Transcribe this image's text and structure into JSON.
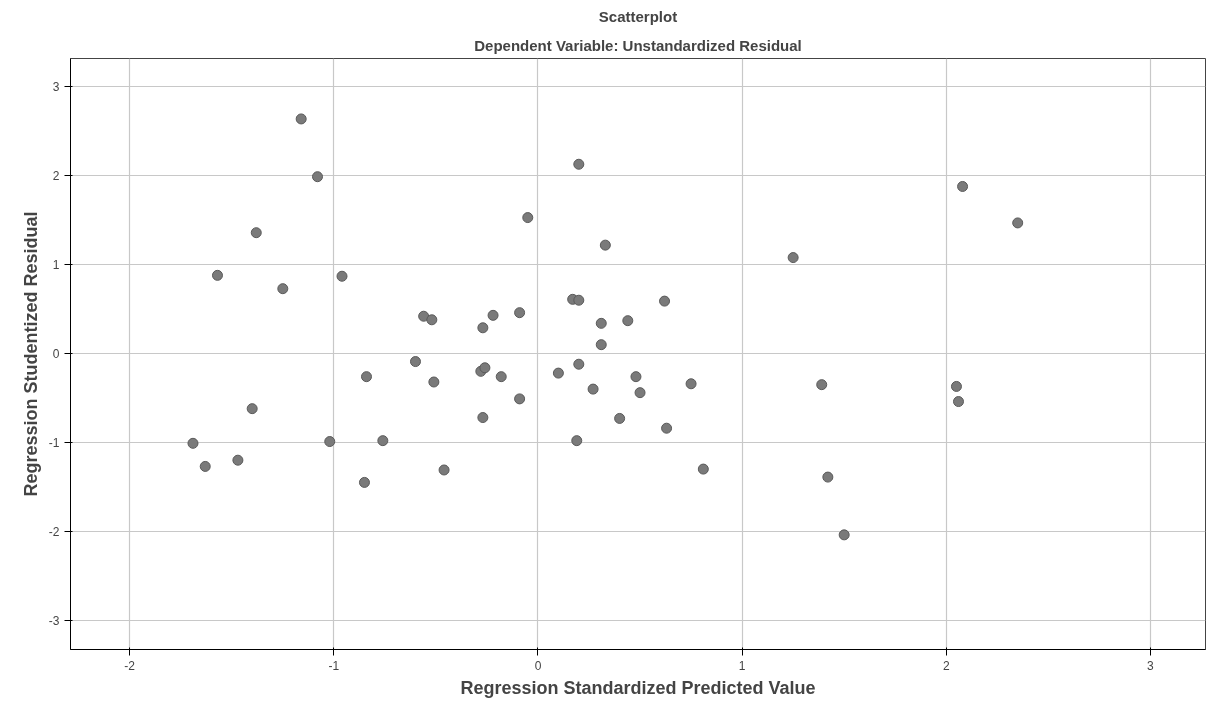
{
  "chart_data": {
    "type": "scatter",
    "title": "Scatterplot",
    "subtitle": "Dependent Variable: Unstandardized Residual",
    "xlabel": "Regression Standardized Predicted Value",
    "ylabel": "Regression Studentized Residual",
    "xlim": [
      -2.29,
      3.27
    ],
    "ylim": [
      -3.33,
      3.32
    ],
    "xticks": [
      -2,
      -1,
      0,
      1,
      2,
      3
    ],
    "yticks": [
      -3,
      -2,
      -1,
      0,
      1,
      2,
      3
    ],
    "grid": true,
    "marker": "circle",
    "series": [
      {
        "color": "#7a7a7a",
        "x": [
          -1.16,
          -1.08,
          -1.38,
          -1.57,
          -1.25,
          -0.96,
          -1.69,
          -1.63,
          -1.47,
          -1.4,
          -1.02,
          -0.84,
          -0.85,
          -0.76,
          -0.6,
          -0.56,
          -0.52,
          -0.51,
          -0.46,
          -0.28,
          -0.26,
          -0.27,
          -0.27,
          -0.22,
          -0.18,
          -0.09,
          -0.09,
          -0.05,
          0.1,
          0.17,
          0.2,
          0.2,
          0.2,
          0.19,
          0.27,
          0.31,
          0.31,
          0.33,
          0.44,
          0.4,
          0.48,
          0.5,
          0.62,
          0.63,
          0.75,
          0.81,
          1.25,
          1.39,
          1.42,
          1.5,
          2.05,
          2.06,
          2.08,
          2.35
        ],
        "values": [
          2.64,
          1.99,
          1.36,
          0.88,
          0.73,
          0.87,
          -1.01,
          -1.27,
          -1.2,
          -0.62,
          -0.99,
          -0.26,
          -1.45,
          -0.98,
          -0.09,
          0.42,
          0.38,
          -0.32,
          -1.31,
          -0.2,
          -0.16,
          0.29,
          -0.72,
          0.43,
          -0.26,
          0.46,
          -0.51,
          1.53,
          -0.22,
          0.61,
          0.6,
          2.13,
          -0.12,
          -0.98,
          -0.4,
          0.34,
          0.1,
          1.22,
          0.37,
          -0.73,
          -0.26,
          -0.44,
          0.59,
          -0.84,
          -0.34,
          -1.3,
          1.08,
          -0.35,
          -1.39,
          -2.04,
          -0.37,
          -0.54,
          1.88,
          1.47
        ]
      }
    ]
  }
}
